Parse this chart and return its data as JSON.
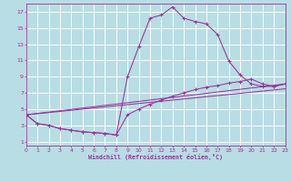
{
  "bg_color": "#b8dde4",
  "grid_color": "#ffffff",
  "line_color": "#993399",
  "xlabel": "Windchill (Refroidissement éolien,°C)",
  "xlim": [
    0,
    23
  ],
  "ylim": [
    0.5,
    18
  ],
  "xticks": [
    0,
    1,
    2,
    3,
    4,
    5,
    6,
    7,
    8,
    9,
    10,
    11,
    12,
    13,
    14,
    15,
    16,
    17,
    18,
    19,
    20,
    21,
    22,
    23
  ],
  "yticks": [
    1,
    3,
    5,
    7,
    9,
    11,
    13,
    15,
    17
  ],
  "curve1_x": [
    0,
    1,
    2,
    3,
    4,
    5,
    6,
    7,
    8,
    9,
    10,
    11,
    12,
    13,
    14,
    15,
    16,
    17,
    18,
    19,
    20,
    21,
    22,
    23
  ],
  "curve1_y": [
    4.3,
    3.2,
    3.0,
    2.6,
    2.4,
    2.2,
    2.1,
    2.0,
    1.8,
    9.0,
    12.7,
    16.2,
    16.6,
    17.6,
    16.2,
    15.8,
    15.5,
    14.2,
    10.9,
    9.2,
    8.1,
    7.8,
    7.8,
    8.1
  ],
  "curve2_x": [
    0,
    1,
    2,
    3,
    4,
    5,
    6,
    7,
    8,
    9,
    10,
    11,
    12,
    13,
    14,
    15,
    16,
    17,
    18,
    19,
    20,
    21,
    22,
    23
  ],
  "curve2_y": [
    4.3,
    3.2,
    3.0,
    2.6,
    2.4,
    2.2,
    2.1,
    2.0,
    1.8,
    4.3,
    5.0,
    5.6,
    6.1,
    6.6,
    7.0,
    7.4,
    7.7,
    7.9,
    8.2,
    8.4,
    8.7,
    8.1,
    7.8,
    8.1
  ],
  "line1_x": [
    0,
    23
  ],
  "line1_y": [
    4.3,
    7.5
  ],
  "line2_x": [
    0,
    23
  ],
  "line2_y": [
    4.3,
    8.1
  ]
}
